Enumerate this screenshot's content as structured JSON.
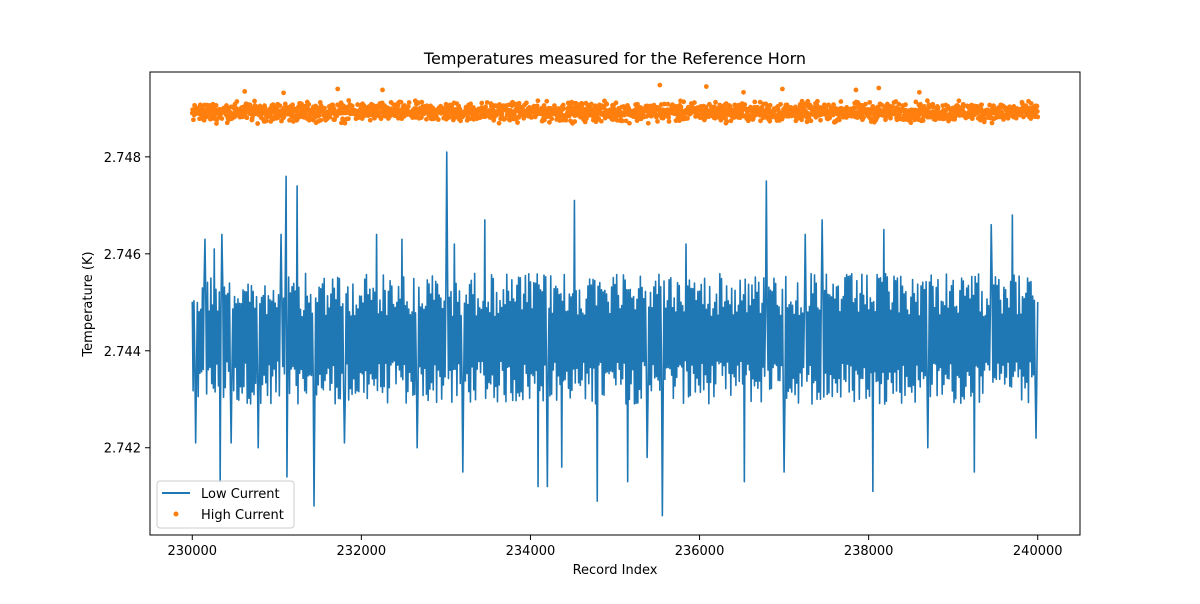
{
  "chart_data": {
    "type": "line",
    "title": "Temperatures measured for the Reference Horn",
    "xlabel": "Record Index",
    "ylabel": "Temperature (K)",
    "xlim": [
      229500,
      240500
    ],
    "ylim": [
      2.7402,
      2.74975
    ],
    "x_ticks": [
      230000,
      232000,
      234000,
      236000,
      238000,
      240000
    ],
    "x_tick_labels": [
      "230000",
      "232000",
      "234000",
      "236000",
      "238000",
      "240000"
    ],
    "y_ticks": [
      2.742,
      2.744,
      2.746,
      2.748
    ],
    "y_tick_labels": [
      "2.742",
      "2.744",
      "2.746",
      "2.748"
    ],
    "grid": false,
    "legend_position": "lower-left",
    "x_range": [
      230000,
      240000
    ],
    "series": [
      {
        "name": "Low Current",
        "style": "line",
        "color": "#1f77b4",
        "center": 2.7442,
        "band": [
          2.7429,
          2.7456
        ],
        "spikes": [
          {
            "x": 230040,
            "y": 2.7421
          },
          {
            "x": 230150,
            "y": 2.7463
          },
          {
            "x": 230260,
            "y": 2.7461
          },
          {
            "x": 230330,
            "y": 2.7413
          },
          {
            "x": 230350,
            "y": 2.7464
          },
          {
            "x": 230460,
            "y": 2.7421
          },
          {
            "x": 230780,
            "y": 2.742
          },
          {
            "x": 231050,
            "y": 2.7464
          },
          {
            "x": 231110,
            "y": 2.7476
          },
          {
            "x": 231120,
            "y": 2.7414
          },
          {
            "x": 231240,
            "y": 2.7474
          },
          {
            "x": 231440,
            "y": 2.7408
          },
          {
            "x": 231800,
            "y": 2.7421
          },
          {
            "x": 232180,
            "y": 2.7464
          },
          {
            "x": 232480,
            "y": 2.7463
          },
          {
            "x": 232660,
            "y": 2.742
          },
          {
            "x": 233010,
            "y": 2.7481
          },
          {
            "x": 233100,
            "y": 2.7462
          },
          {
            "x": 233200,
            "y": 2.7415
          },
          {
            "x": 233460,
            "y": 2.7467
          },
          {
            "x": 234090,
            "y": 2.7412
          },
          {
            "x": 234200,
            "y": 2.7412
          },
          {
            "x": 234370,
            "y": 2.7416
          },
          {
            "x": 234520,
            "y": 2.7471
          },
          {
            "x": 234790,
            "y": 2.7409
          },
          {
            "x": 235150,
            "y": 2.7413
          },
          {
            "x": 235380,
            "y": 2.7418
          },
          {
            "x": 235560,
            "y": 2.7406
          },
          {
            "x": 235840,
            "y": 2.7462
          },
          {
            "x": 236530,
            "y": 2.7413
          },
          {
            "x": 236790,
            "y": 2.7475
          },
          {
            "x": 237000,
            "y": 2.7415
          },
          {
            "x": 237250,
            "y": 2.7464
          },
          {
            "x": 237450,
            "y": 2.7467
          },
          {
            "x": 238050,
            "y": 2.7411
          },
          {
            "x": 238180,
            "y": 2.7465
          },
          {
            "x": 238700,
            "y": 2.742
          },
          {
            "x": 239250,
            "y": 2.7415
          },
          {
            "x": 239450,
            "y": 2.7466
          },
          {
            "x": 239700,
            "y": 2.7468
          },
          {
            "x": 239980,
            "y": 2.7422
          }
        ]
      },
      {
        "name": "High Current",
        "style": "markers",
        "color": "#ff7f0e",
        "center": 2.7489,
        "band": [
          2.74865,
          2.7492
        ],
        "outliers": [
          {
            "x": 230620,
            "y": 2.74935
          },
          {
            "x": 231080,
            "y": 2.74932
          },
          {
            "x": 231720,
            "y": 2.7494
          },
          {
            "x": 232250,
            "y": 2.74938
          },
          {
            "x": 235530,
            "y": 2.74948
          },
          {
            "x": 236080,
            "y": 2.74945
          },
          {
            "x": 236520,
            "y": 2.74933
          },
          {
            "x": 236980,
            "y": 2.7494
          },
          {
            "x": 237850,
            "y": 2.74938
          },
          {
            "x": 238120,
            "y": 2.74942
          },
          {
            "x": 238600,
            "y": 2.74933
          }
        ]
      }
    ]
  }
}
